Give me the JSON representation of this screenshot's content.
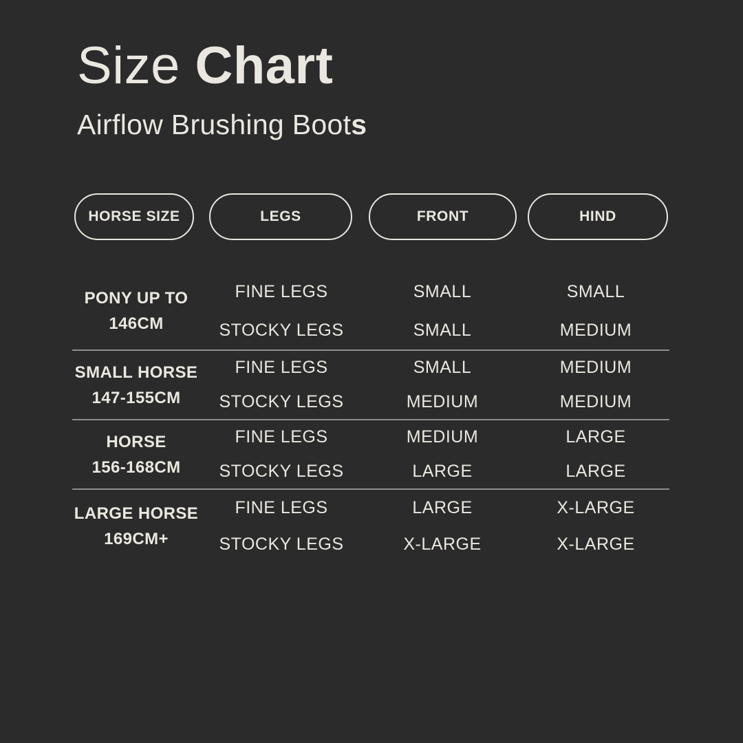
{
  "page": {
    "background_color": "#2b2b2b",
    "text_color": "#eae7e0",
    "divider_color": "#8e8e8e"
  },
  "header": {
    "title_regular": "Size ",
    "title_bold": "Chart",
    "subtitle_regular": "Airflow Brushing Boot",
    "subtitle_bold": "s"
  },
  "columns": {
    "horse_size": "HORSE SIZE",
    "legs": "LEGS",
    "front": "FRONT",
    "hind": "HIND"
  },
  "size_chart": {
    "groups": [
      {
        "horse_size_line1": "PONY UP TO",
        "horse_size_line2": "146CM",
        "rows": [
          {
            "legs": "FINE LEGS",
            "front": "SMALL",
            "hind": "SMALL"
          },
          {
            "legs": "STOCKY LEGS",
            "front": "SMALL",
            "hind": "MEDIUM"
          }
        ]
      },
      {
        "horse_size_line1": "SMALL HORSE",
        "horse_size_line2": "147-155CM",
        "rows": [
          {
            "legs": "FINE LEGS",
            "front": "SMALL",
            "hind": "MEDIUM"
          },
          {
            "legs": "STOCKY LEGS",
            "front": "MEDIUM",
            "hind": "MEDIUM"
          }
        ]
      },
      {
        "horse_size_line1": "HORSE",
        "horse_size_line2": "156-168CM",
        "rows": [
          {
            "legs": "FINE LEGS",
            "front": "MEDIUM",
            "hind": "LARGE"
          },
          {
            "legs": "STOCKY LEGS",
            "front": "LARGE",
            "hind": "LARGE"
          }
        ]
      },
      {
        "horse_size_line1": "LARGE HORSE",
        "horse_size_line2": "169CM+",
        "rows": [
          {
            "legs": "FINE LEGS",
            "front": "LARGE",
            "hind": "X-LARGE"
          },
          {
            "legs": "STOCKY LEGS",
            "front": "X-LARGE",
            "hind": "X-LARGE"
          }
        ]
      }
    ]
  },
  "chart_data": {
    "type": "table",
    "title": "Size Chart",
    "subtitle": "Airflow Brushing Boots",
    "columns": [
      "HORSE SIZE",
      "LEGS",
      "FRONT",
      "HIND"
    ],
    "rows": [
      [
        "PONY UP TO 146CM",
        "FINE LEGS",
        "SMALL",
        "SMALL"
      ],
      [
        "PONY UP TO 146CM",
        "STOCKY LEGS",
        "SMALL",
        "MEDIUM"
      ],
      [
        "SMALL HORSE 147-155CM",
        "FINE LEGS",
        "SMALL",
        "MEDIUM"
      ],
      [
        "SMALL HORSE 147-155CM",
        "STOCKY LEGS",
        "MEDIUM",
        "MEDIUM"
      ],
      [
        "HORSE 156-168CM",
        "FINE LEGS",
        "MEDIUM",
        "LARGE"
      ],
      [
        "HORSE 156-168CM",
        "STOCKY LEGS",
        "LARGE",
        "LARGE"
      ],
      [
        "LARGE HORSE 169CM+",
        "FINE LEGS",
        "LARGE",
        "X-LARGE"
      ],
      [
        "LARGE HORSE 169CM+",
        "STOCKY LEGS",
        "X-LARGE",
        "X-LARGE"
      ]
    ]
  }
}
